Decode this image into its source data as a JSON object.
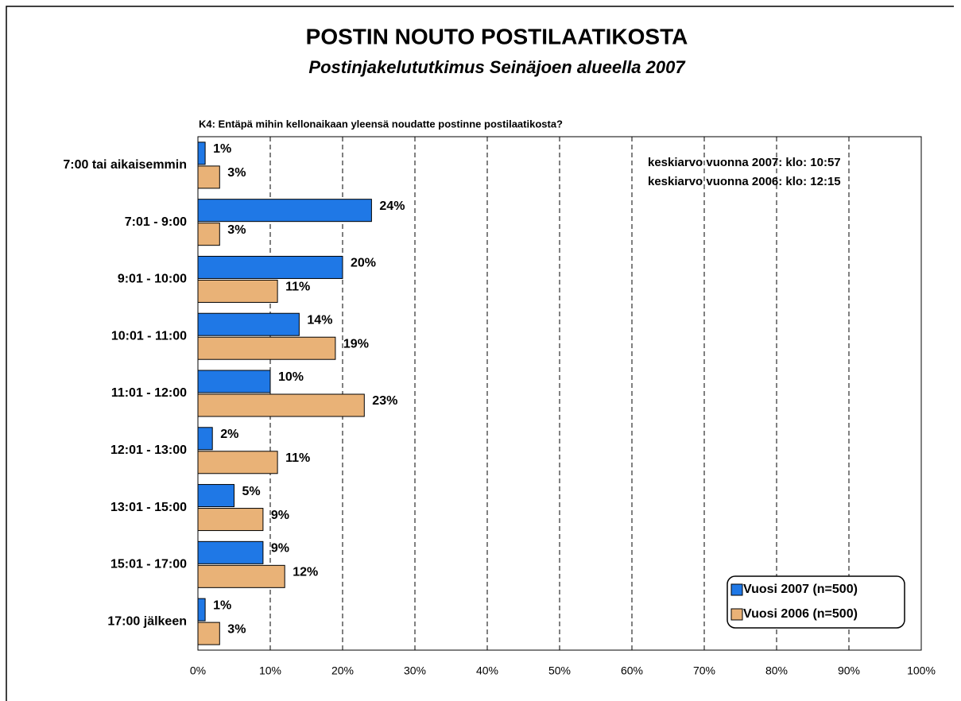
{
  "chart_data": {
    "type": "bar",
    "orientation": "horizontal",
    "title": "POSTIN NOUTO POSTILAATIKOSTA",
    "subtitle": "Postinjakelututkimus Seinäjoen alueella 2007",
    "question": "K4: Entäpä mihin kellonaikaan yleensä noudatte postinne postilaatikosta?",
    "annotations": [
      "keskiarvo vuonna 2007: klo: 10:57",
      "keskiarvo vuonna 2006: klo: 12:15"
    ],
    "categories": [
      "7:00 tai aikaisemmin",
      "7:01 - 9:00",
      "9:01 - 10:00",
      "10:01 - 11:00",
      "11:01 - 12:00",
      "12:01 - 13:00",
      "13:01 - 15:00",
      "15:01 - 17:00",
      "17:00 jälkeen"
    ],
    "series": [
      {
        "name": "Vuosi 2007 (n=500)",
        "color": "#1f78e6",
        "values": [
          1,
          24,
          20,
          14,
          10,
          2,
          5,
          9,
          1
        ],
        "value_labels": [
          "1%",
          "24%",
          "20%",
          "14%",
          "10%",
          "2%",
          "5%",
          "9%",
          "1%"
        ]
      },
      {
        "name": "Vuosi 2006 (n=500)",
        "color": "#e9b277",
        "values": [
          3,
          3,
          11,
          19,
          23,
          11,
          9,
          12,
          3
        ],
        "value_labels": [
          "3%",
          "3%",
          "11%",
          "19%",
          "23%",
          "11%",
          "9%",
          "12%",
          "3%"
        ]
      }
    ],
    "xlim": [
      0,
      100
    ],
    "xticks": [
      {
        "value": 0,
        "label": "0%"
      },
      {
        "value": 10,
        "label": "10%"
      },
      {
        "value": 20,
        "label": "20%"
      },
      {
        "value": 30,
        "label": "30%"
      },
      {
        "value": 40,
        "label": "40%"
      },
      {
        "value": 50,
        "label": "50%"
      },
      {
        "value": 60,
        "label": "60%"
      },
      {
        "value": 70,
        "label": "70%"
      },
      {
        "value": 80,
        "label": "80%"
      },
      {
        "value": 90,
        "label": "90%"
      },
      {
        "value": 100,
        "label": "100%"
      }
    ],
    "grid": true,
    "legend": "lower right"
  }
}
